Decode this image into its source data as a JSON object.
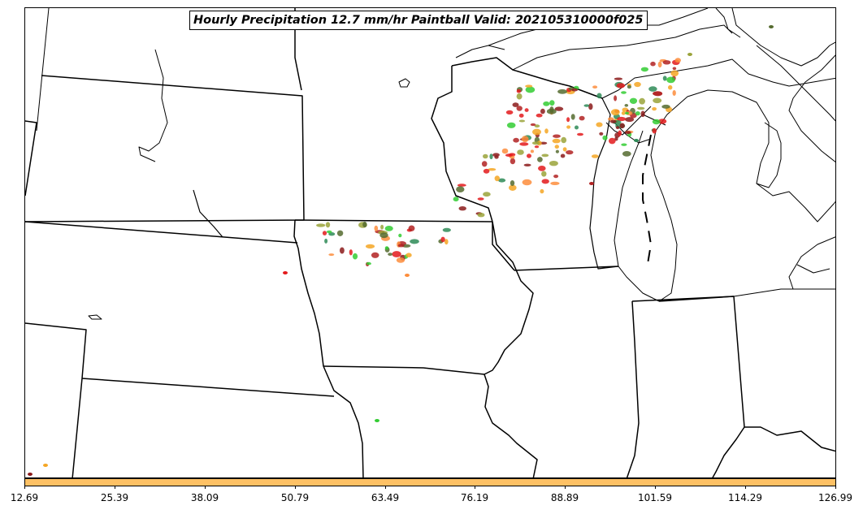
{
  "title": "Hourly Precipitation 12.7 mm/hr Paintball Valid: 202105310000f025",
  "colorbar": {
    "color": "#fec165",
    "tick_labels": [
      "12.69",
      "25.39",
      "38.09",
      "50.79",
      "63.49",
      "76.19",
      "88.89",
      "101.59",
      "114.29",
      "126.99"
    ]
  },
  "paintball_colors": [
    "#e31a1c",
    "#33cc33",
    "#fd8d3c",
    "#f5a623",
    "#8b1a1a",
    "#556b2f",
    "#9aa33a",
    "#2e8b57",
    "#b22222"
  ]
}
